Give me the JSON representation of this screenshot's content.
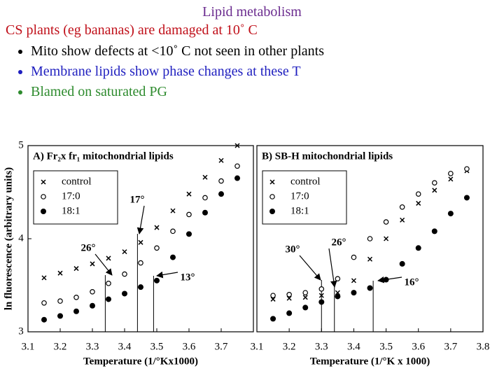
{
  "slide": {
    "title": "Lipid metabolism",
    "subtitle": "CS plants (eg bananas) are damaged at 10˚ C",
    "bullets": [
      {
        "text": "Mito show defects at <10˚ C not seen in other plants",
        "color": "#000000"
      },
      {
        "text": "Membrane lipids show phase changes at these T",
        "color": "#1f1fbf"
      },
      {
        "text": "Blamed on saturated PG",
        "color": "#2e8b2e"
      }
    ]
  },
  "chart_data": [
    {
      "type": "scatter",
      "title": "A) Fr₂x fr₁  mitochondrial lipids",
      "xlabel": "Temperature (1/°Kx1000)",
      "ylabel": "ln fluorescence (arbitrary units)",
      "legend": "upper left",
      "x": [
        3.15,
        3.2,
        3.25,
        3.3,
        3.35,
        3.4,
        3.45,
        3.5,
        3.55,
        3.6,
        3.65,
        3.7,
        3.75
      ],
      "series": [
        {
          "name": "control",
          "marker": "x",
          "color": "#000000",
          "values": [
            3.58,
            3.63,
            3.68,
            3.73,
            3.79,
            3.86,
            3.96,
            4.12,
            4.3,
            4.48,
            4.66,
            4.84,
            5.0
          ]
        },
        {
          "name": "17:0",
          "marker": "open-circle",
          "color": "#000000",
          "values": [
            3.31,
            3.33,
            3.37,
            3.43,
            3.52,
            3.62,
            3.74,
            3.9,
            4.08,
            4.26,
            4.44,
            4.62,
            4.78
          ]
        },
        {
          "name": "18:1",
          "marker": "filled-circle",
          "color": "#000000",
          "values": [
            3.13,
            3.17,
            3.22,
            3.28,
            3.35,
            3.41,
            3.48,
            3.55,
            3.8,
            4.05,
            4.28,
            4.48,
            4.65
          ]
        }
      ],
      "annotations": [
        {
          "text": "26°",
          "x": 3.34
        },
        {
          "text": "17°",
          "x": 3.44
        },
        {
          "text": "13°",
          "x": 3.49
        }
      ],
      "xlim": [
        3.1,
        3.8
      ],
      "xticks": [
        3.1,
        3.2,
        3.3,
        3.4,
        3.5,
        3.6,
        3.7
      ],
      "ylim": [
        3,
        5
      ],
      "yticks": [
        3,
        4,
        5
      ]
    },
    {
      "type": "scatter",
      "title": "B) SB-H  mitochondrial lipids",
      "xlabel": "Temperature (1/°K x 1000)",
      "legend": "upper left",
      "x": [
        3.15,
        3.2,
        3.25,
        3.3,
        3.35,
        3.4,
        3.45,
        3.5,
        3.55,
        3.6,
        3.65,
        3.7,
        3.75
      ],
      "series": [
        {
          "name": "control",
          "marker": "x",
          "color": "#000000",
          "values": [
            3.35,
            3.36,
            3.37,
            3.39,
            3.42,
            3.55,
            3.78,
            4.0,
            4.2,
            4.38,
            4.52,
            4.64,
            4.73
          ]
        },
        {
          "name": "17:0",
          "marker": "open-circle",
          "color": "#000000",
          "values": [
            3.39,
            3.4,
            3.42,
            3.46,
            3.57,
            3.8,
            4.0,
            4.18,
            4.34,
            4.48,
            4.6,
            4.7,
            4.75
          ]
        },
        {
          "name": "18:1",
          "marker": "filled-circle",
          "color": "#000000",
          "values": [
            3.14,
            3.2,
            3.26,
            3.32,
            3.38,
            3.42,
            3.47,
            3.56,
            3.73,
            3.9,
            4.08,
            4.27,
            4.44
          ]
        }
      ],
      "annotations": [
        {
          "text": "30°",
          "x": 3.3
        },
        {
          "text": "26°",
          "x": 3.34
        },
        {
          "text": "16°",
          "x": 3.46
        }
      ],
      "xlim": [
        3.1,
        3.8
      ],
      "xticks": [
        3.1,
        3.2,
        3.3,
        3.4,
        3.5,
        3.6,
        3.7,
        3.8
      ],
      "ylim": [
        3,
        5
      ]
    }
  ]
}
